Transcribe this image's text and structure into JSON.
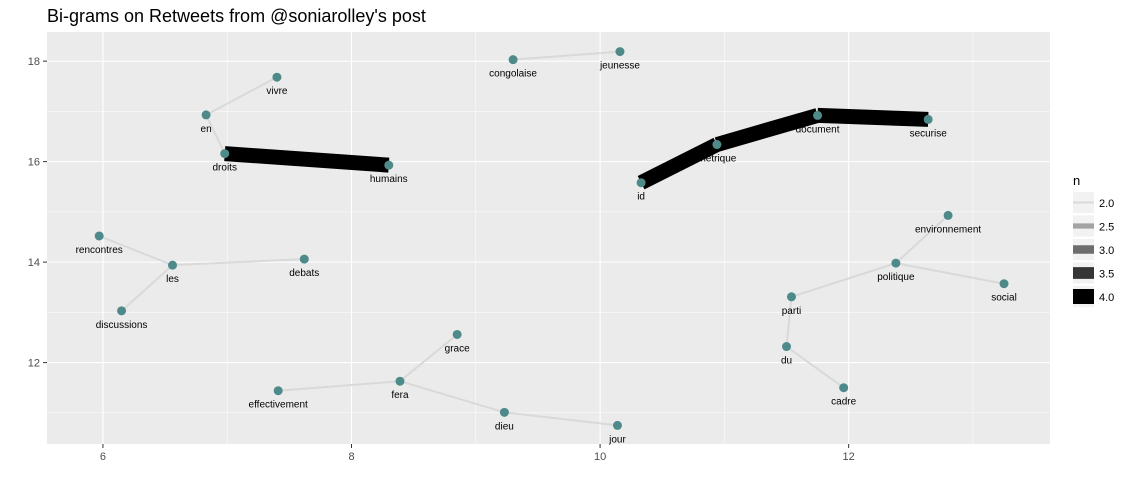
{
  "chart_data": {
    "type": "network",
    "title": "Bi-grams on Retweets from @soniarolley's post",
    "xlabel": "",
    "ylabel": "",
    "xlim": [
      5.55,
      13.62
    ],
    "ylim": [
      10.38,
      18.58
    ],
    "xticks": [
      6,
      8,
      10,
      12
    ],
    "yticks": [
      12,
      14,
      16,
      18
    ],
    "grid": true,
    "legend": {
      "title": "n",
      "position": "right",
      "entries": [
        {
          "label": "2.0",
          "value": 2.0
        },
        {
          "label": "2.5",
          "value": 2.5
        },
        {
          "label": "3.0",
          "value": 3.0
        },
        {
          "label": "3.5",
          "value": 3.5
        },
        {
          "label": "4.0",
          "value": 4.0
        }
      ]
    },
    "nodes": [
      {
        "id": "vivre",
        "x": 7.4,
        "y": 17.68
      },
      {
        "id": "en",
        "x": 6.83,
        "y": 16.93
      },
      {
        "id": "droits",
        "x": 6.98,
        "y": 16.16
      },
      {
        "id": "humains",
        "x": 8.3,
        "y": 15.93
      },
      {
        "id": "congolaise",
        "x": 9.3,
        "y": 18.03
      },
      {
        "id": "jeunesse",
        "x": 10.16,
        "y": 18.19
      },
      {
        "id": "id",
        "x": 10.33,
        "y": 15.58
      },
      {
        "id": "metrique",
        "x": 10.94,
        "y": 16.34
      },
      {
        "id": "document",
        "x": 11.75,
        "y": 16.92
      },
      {
        "id": "securise",
        "x": 12.64,
        "y": 16.84
      },
      {
        "id": "environnement",
        "x": 12.8,
        "y": 14.93
      },
      {
        "id": "politique",
        "x": 12.38,
        "y": 13.98
      },
      {
        "id": "social",
        "x": 13.25,
        "y": 13.57
      },
      {
        "id": "parti",
        "x": 11.54,
        "y": 13.31
      },
      {
        "id": "du",
        "x": 11.5,
        "y": 12.32
      },
      {
        "id": "cadre",
        "x": 11.96,
        "y": 11.5
      },
      {
        "id": "rencontres",
        "x": 5.97,
        "y": 14.52
      },
      {
        "id": "les",
        "x": 6.56,
        "y": 13.94
      },
      {
        "id": "debats",
        "x": 7.62,
        "y": 14.06
      },
      {
        "id": "discussions",
        "x": 6.15,
        "y": 13.03
      },
      {
        "id": "grace",
        "x": 8.85,
        "y": 12.56
      },
      {
        "id": "fera",
        "x": 8.39,
        "y": 11.63
      },
      {
        "id": "effectivement",
        "x": 7.41,
        "y": 11.44
      },
      {
        "id": "dieu",
        "x": 9.23,
        "y": 11.01
      },
      {
        "id": "jour",
        "x": 10.14,
        "y": 10.75
      }
    ],
    "edges": [
      {
        "from": "en",
        "to": "vivre",
        "n": 2
      },
      {
        "from": "en",
        "to": "droits",
        "n": 2
      },
      {
        "from": "droits",
        "to": "humains",
        "n": 4
      },
      {
        "from": "congolaise",
        "to": "jeunesse",
        "n": 2
      },
      {
        "from": "id",
        "to": "metrique",
        "n": 4
      },
      {
        "from": "metrique",
        "to": "document",
        "n": 4
      },
      {
        "from": "document",
        "to": "securise",
        "n": 4
      },
      {
        "from": "politique",
        "to": "environnement",
        "n": 2
      },
      {
        "from": "politique",
        "to": "social",
        "n": 2
      },
      {
        "from": "parti",
        "to": "politique",
        "n": 2
      },
      {
        "from": "du",
        "to": "parti",
        "n": 2
      },
      {
        "from": "du",
        "to": "cadre",
        "n": 2
      },
      {
        "from": "rencontres",
        "to": "les",
        "n": 2
      },
      {
        "from": "les",
        "to": "debats",
        "n": 2
      },
      {
        "from": "les",
        "to": "discussions",
        "n": 2
      },
      {
        "from": "effectivement",
        "to": "fera",
        "n": 2
      },
      {
        "from": "fera",
        "to": "grace",
        "n": 2
      },
      {
        "from": "fera",
        "to": "dieu",
        "n": 2
      },
      {
        "from": "dieu",
        "to": "jour",
        "n": 2
      }
    ],
    "colors": {
      "panel_background": "#ebebeb",
      "grid_major": "#ffffff",
      "node": "#4f8a8b",
      "edge_min": "#d9d9d9",
      "edge_max": "#000000"
    }
  }
}
